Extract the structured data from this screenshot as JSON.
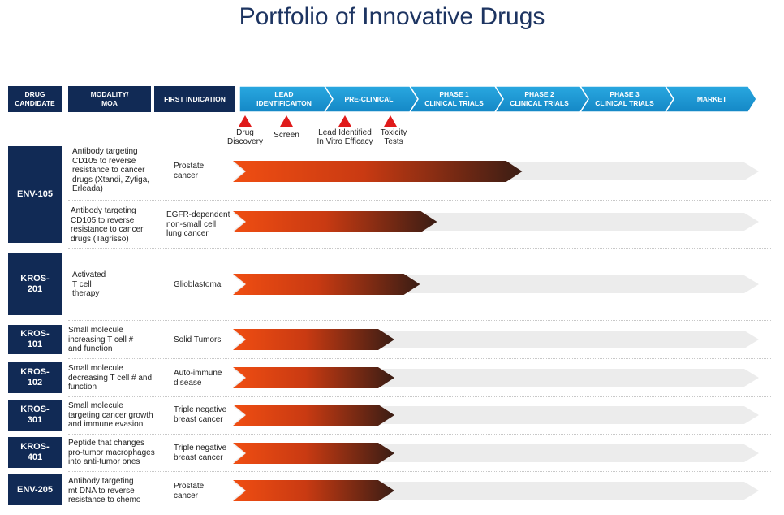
{
  "title": "Portfolio of Innovative Drugs",
  "headers": {
    "drug_candidate": "DRUG\nCANDIDATE",
    "modality": "MODALITY/\nMOA",
    "first_indication": "FIRST INDICATION",
    "stages": [
      "LEAD\nIDENTIFICAITON",
      "PRE-CLINICAL",
      "PHASE 1\nCLINICAL TRIALS",
      "PHASE 2\nCLINICAL TRIALS",
      "PHASE 3\nCLINICAL TRIALS",
      "MARKET"
    ]
  },
  "markers": [
    {
      "label": "Drug\nDiscovery"
    },
    {
      "label": "Screen"
    },
    {
      "label": "Lead Identified\nIn Vitro Efficacy"
    },
    {
      "label": "Toxicity\nTests"
    }
  ],
  "candidates": [
    {
      "name": "ENV-105"
    },
    {
      "name": "KROS-\n201"
    },
    {
      "name": "KROS-\n101"
    },
    {
      "name": "KROS-\n102"
    },
    {
      "name": "KROS-\n301"
    },
    {
      "name": "KROS-\n401"
    },
    {
      "name": "ENV-205"
    }
  ],
  "programs": [
    {
      "moa": "Antibody targeting\nCD105 to reverse\nresistance to cancer\ndrugs (Xtandi, Zytiga,\nErleada)",
      "indication": "Prostate\ncancer",
      "progress_stage": 3.3
    },
    {
      "moa": "Antibody targeting\nCD105 to reverse\nresistance to cancer\ndrugs (Tagrisso)",
      "indication": "EGFR-dependent\nnon-small cell\nlung cancer",
      "progress_stage": 2.3
    },
    {
      "moa": "Activated\nT cell\ntherapy",
      "indication": "Glioblastoma",
      "progress_stage": 2.1
    },
    {
      "moa": "Small molecule\nincreasing T cell #\nand function",
      "indication": "Solid Tumors",
      "progress_stage": 1.8
    },
    {
      "moa": "Small molecule\ndecreasing T cell # and\nfunction",
      "indication": "Auto-immune\ndisease",
      "progress_stage": 1.8
    },
    {
      "moa": "Small molecule\ntargeting cancer growth\nand immune evasion",
      "indication": "Triple negative\nbreast cancer",
      "progress_stage": 1.8
    },
    {
      "moa": "Peptide that changes\npro-tumor macrophages\ninto anti-tumor ones",
      "indication": "Triple negative\nbreast cancer",
      "progress_stage": 1.8
    },
    {
      "moa": "Antibody targeting\nmt DNA to reverse\nresistance to chemo",
      "indication": "Prostate\ncancer",
      "progress_stage": 1.8
    }
  ],
  "colors": {
    "navy": "#112a55",
    "stage_blue": "#1c9ad6",
    "arrow_start": "#f04e12",
    "arrow_end": "#3a1d14",
    "track": "#ececec",
    "marker": "#e01b1b"
  }
}
